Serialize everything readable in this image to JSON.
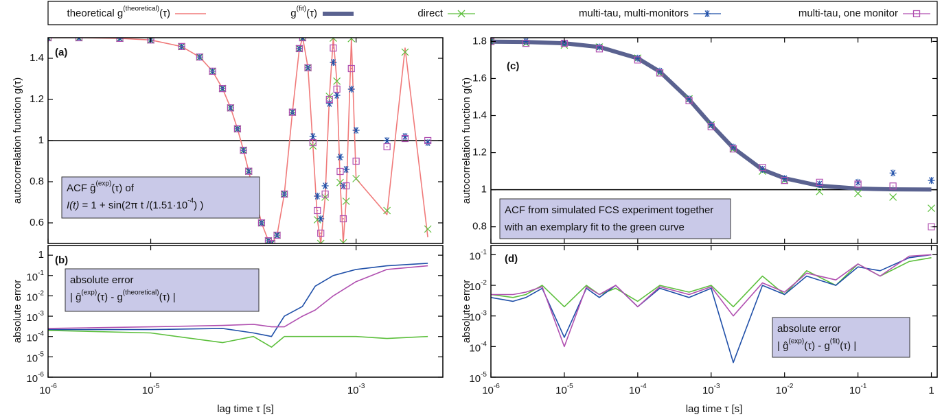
{
  "legend": [
    {
      "name": [
        {
          "text": "theoretical g"
        },
        {
          "sup": "(theoretical)"
        },
        {
          "text": "(τ)"
        }
      ],
      "color": "#f07a7a",
      "marker": "line"
    },
    {
      "name": [
        {
          "text": "g"
        },
        {
          "sup": "(fit)"
        },
        {
          "text": "(τ)"
        }
      ],
      "color": "#5a6290",
      "marker": "thick"
    },
    {
      "name": [
        {
          "text": "direct"
        }
      ],
      "color": "#5cbf3c",
      "marker": "x"
    },
    {
      "name": [
        {
          "text": "multi-tau, multi-monitors"
        }
      ],
      "color": "#1f4fa8",
      "marker": "star"
    },
    {
      "name": [
        {
          "text": "multi-tau, one monitor"
        }
      ],
      "color": "#b04fb0",
      "marker": "square"
    }
  ],
  "chart_data": [
    {
      "type": "line",
      "label": "(a)",
      "ylabel": "autocorrelation function g(τ)",
      "xlog": true,
      "ylog": false,
      "hline": 1,
      "xlim": [
        1e-06,
        0.007
      ],
      "ylim": [
        0.5,
        1.5
      ],
      "xticks": [
        {
          "value": 1e-06,
          "label": "10",
          "sup": "-6"
        },
        {
          "value": 1e-05,
          "label": "10",
          "sup": "-5"
        },
        {
          "value": 0.001,
          "label": "10",
          "sup": "-3"
        }
      ],
      "yticks": [
        0.6,
        0.8,
        1,
        1.2,
        1.4
      ],
      "x": [
        1e-06,
        2e-06,
        5e-06,
        1e-05,
        2e-05,
        3e-05,
        4e-05,
        5e-05,
        6e-05,
        7e-05,
        8e-05,
        9e-05,
        0.0001,
        0.00012,
        0.00014,
        0.000151,
        0.00017,
        0.0002,
        0.00024,
        0.00028,
        0.000302,
        0.00034,
        0.00038,
        0.00042,
        0.000453,
        0.0005,
        0.00055,
        0.0006,
        0.00065,
        0.0007,
        0.00075,
        0.0008,
        0.0009,
        0.001,
        0.002,
        0.003,
        0.005
      ],
      "series": [
        {
          "color": "#f07a7a",
          "marker": "line",
          "values": [
            1.5,
            1.5,
            1.497,
            1.489,
            1.457,
            1.406,
            1.337,
            1.253,
            1.159,
            1.057,
            0.953,
            0.851,
            0.756,
            0.6,
            0.513,
            0.5,
            0.54,
            0.74,
            1.138,
            1.447,
            1.5,
            1.354,
            0.974,
            0.615,
            0.5,
            0.725,
            1.215,
            1.498,
            1.289,
            0.796,
            0.503,
            0.705,
            1.496,
            0.815,
            0.64,
            1.45,
            0.53
          ]
        },
        {
          "color": "#5cbf3c",
          "marker": "x",
          "values": [
            1.5,
            1.5,
            1.497,
            1.489,
            1.457,
            1.406,
            1.337,
            1.253,
            1.159,
            1.057,
            0.953,
            0.851,
            0.756,
            0.6,
            0.513,
            0.5,
            0.54,
            0.74,
            1.138,
            1.447,
            1.5,
            1.354,
            0.974,
            0.615,
            0.5,
            0.725,
            1.215,
            1.498,
            1.289,
            0.796,
            0.503,
            0.705,
            1.496,
            0.815,
            0.66,
            1.43,
            0.57
          ]
        },
        {
          "color": "#1f4fa8",
          "marker": "star",
          "values": [
            1.5,
            1.5,
            1.497,
            1.489,
            1.457,
            1.406,
            1.337,
            1.253,
            1.159,
            1.057,
            0.953,
            0.851,
            0.756,
            0.6,
            0.513,
            0.5,
            0.54,
            0.74,
            1.138,
            1.447,
            1.5,
            1.354,
            1.02,
            0.73,
            0.62,
            0.78,
            1.18,
            1.38,
            1.22,
            0.92,
            0.78,
            0.86,
            1.25,
            1.05,
            1.0,
            1.02,
            0.99
          ]
        },
        {
          "color": "#b04fb0",
          "marker": "square",
          "values": [
            1.5,
            1.5,
            1.497,
            1.489,
            1.457,
            1.406,
            1.337,
            1.253,
            1.159,
            1.057,
            0.953,
            0.851,
            0.756,
            0.6,
            0.513,
            0.5,
            0.54,
            0.74,
            1.138,
            1.447,
            1.5,
            1.354,
            0.99,
            0.66,
            0.55,
            0.74,
            1.2,
            1.45,
            1.25,
            0.85,
            0.62,
            0.78,
            1.35,
            0.9,
            0.97,
            1.01,
            1.0
          ]
        }
      ],
      "annotation": [
        [
          {
            "text": "ACF ĝ"
          },
          {
            "sup": "(exp)"
          },
          {
            "text": "(τ) of"
          }
        ],
        [
          {
            "text": "I(t)",
            "italic": true
          },
          {
            "text": " = 1 + sin(2π t /(1.51·10"
          },
          {
            "sup": "-4"
          },
          {
            "text": ") )"
          }
        ]
      ]
    },
    {
      "type": "line",
      "label": "(b)",
      "ylabel": "absolute error",
      "xlabel": "lag time τ [s]",
      "xlog": true,
      "ylog": true,
      "xlim": [
        1e-06,
        0.007
      ],
      "ylim": [
        1e-06,
        3
      ],
      "xticks": [
        {
          "value": 1e-06,
          "label": "10",
          "sup": "-6"
        },
        {
          "value": 1e-05,
          "label": "10",
          "sup": "-5"
        },
        {
          "value": 0.001,
          "label": "10",
          "sup": "-3"
        }
      ],
      "yticks": [
        {
          "value": 1e-06,
          "label": "10",
          "sup": "-6"
        },
        {
          "value": 1e-05,
          "label": "10",
          "sup": "-5"
        },
        {
          "value": 0.0001,
          "label": "10",
          "sup": "-4"
        },
        {
          "value": 0.001,
          "label": "10",
          "sup": "-3"
        },
        {
          "value": 0.01,
          "label": "10",
          "sup": "-2"
        },
        {
          "value": 0.1,
          "label": "10",
          "sup": "-1"
        },
        1
      ],
      "x": [
        1e-06,
        1e-05,
        5e-05,
        0.0001,
        0.00015,
        0.0002,
        0.0003,
        0.0004,
        0.0006,
        0.001,
        0.002,
        0.005
      ],
      "series": [
        {
          "color": "#1f4fa8",
          "marker": "line",
          "values": [
            0.00022,
            0.00022,
            0.00025,
            0.00015,
            0.0001,
            0.001,
            0.003,
            0.03,
            0.1,
            0.2,
            0.3,
            0.4
          ]
        },
        {
          "color": "#b04fb0",
          "marker": "line",
          "values": [
            0.00025,
            0.0003,
            0.00035,
            0.0004,
            0.0003,
            0.0003,
            0.001,
            0.002,
            0.01,
            0.05,
            0.2,
            0.3
          ]
        },
        {
          "color": "#5cbf3c",
          "marker": "line",
          "values": [
            0.0002,
            0.00015,
            5e-05,
            0.0001,
            3e-05,
            0.0001,
            0.0001,
            0.0001,
            0.0001,
            0.0001,
            8e-05,
            0.0001
          ]
        }
      ],
      "annotation": [
        [
          {
            "text": "absolute error"
          }
        ],
        [
          {
            "text": "| ĝ"
          },
          {
            "sup": "(exp)"
          },
          {
            "text": "(τ) - g"
          },
          {
            "sup": "(theoretical)"
          },
          {
            "text": "(τ) |"
          }
        ]
      ]
    },
    {
      "type": "line",
      "label": "(c)",
      "ylabel": "autocorrelation function g(τ)",
      "xlog": true,
      "ylog": false,
      "hline": 1,
      "xlim": [
        1e-06,
        1.2
      ],
      "ylim": [
        0.71,
        1.82
      ],
      "xticks": [
        {
          "value": 1e-06,
          "label": "10",
          "sup": "-6"
        },
        {
          "value": 1e-05,
          "label": "10",
          "sup": "-5"
        },
        {
          "value": 0.0001,
          "label": "10",
          "sup": "-4"
        },
        {
          "value": 0.001,
          "label": "10",
          "sup": "-3"
        },
        {
          "value": 0.01,
          "label": "10",
          "sup": "-2"
        },
        {
          "value": 0.1,
          "label": "10",
          "sup": "-1"
        },
        1
      ],
      "yticks": [
        0.8,
        1,
        1.2,
        1.4,
        1.6,
        1.8
      ],
      "x": [
        1e-06,
        3e-06,
        1e-05,
        3e-05,
        0.0001,
        0.0002,
        0.0005,
        0.001,
        0.002,
        0.005,
        0.01,
        0.03,
        0.1,
        0.3,
        1
      ],
      "series": [
        {
          "color": "#5a6290",
          "marker": "thick",
          "values": [
            1.799,
            1.797,
            1.79,
            1.77,
            1.709,
            1.637,
            1.487,
            1.351,
            1.225,
            1.108,
            1.062,
            1.021,
            1.006,
            1.002,
            1.001
          ]
        },
        {
          "color": "#5cbf3c",
          "marker": "x",
          "values": [
            1.8,
            1.79,
            1.78,
            1.77,
            1.71,
            1.63,
            1.49,
            1.35,
            1.22,
            1.1,
            1.05,
            0.99,
            0.98,
            0.96,
            0.9
          ]
        },
        {
          "color": "#1f4fa8",
          "marker": "star",
          "values": [
            1.8,
            1.8,
            1.79,
            1.77,
            1.71,
            1.64,
            1.49,
            1.35,
            1.23,
            1.11,
            1.06,
            1.03,
            1.04,
            1.09,
            1.05
          ]
        },
        {
          "color": "#b04fb0",
          "marker": "square",
          "values": [
            1.8,
            1.79,
            1.79,
            1.76,
            1.7,
            1.63,
            1.48,
            1.34,
            1.22,
            1.12,
            1.05,
            1.04,
            1.03,
            1.02,
            0.8
          ]
        }
      ],
      "annotation": [
        [
          {
            "text": "ACF from simulated FCS experiment together"
          }
        ],
        [
          {
            "text": "with an exemplary  fit to the green curve"
          }
        ]
      ]
    },
    {
      "type": "line",
      "label": "(d)",
      "ylabel": "absolute error",
      "xlabel": "lag time τ [s]",
      "xlog": true,
      "ylog": true,
      "xlim": [
        1e-06,
        1.2
      ],
      "ylim": [
        1e-05,
        0.2
      ],
      "xticks": [
        {
          "value": 1e-06,
          "label": "10",
          "sup": "-6"
        },
        {
          "value": 1e-05,
          "label": "10",
          "sup": "-5"
        },
        {
          "value": 0.0001,
          "label": "10",
          "sup": "-4"
        },
        {
          "value": 0.001,
          "label": "10",
          "sup": "-3"
        },
        {
          "value": 0.01,
          "label": "10",
          "sup": "-2"
        },
        {
          "value": 0.1,
          "label": "10",
          "sup": "-1"
        },
        1
      ],
      "yticks": [
        {
          "value": 1e-05,
          "label": "10",
          "sup": "-5"
        },
        {
          "value": 0.0001,
          "label": "10",
          "sup": "-4"
        },
        {
          "value": 0.001,
          "label": "10",
          "sup": "-3"
        },
        {
          "value": 0.01,
          "label": "10",
          "sup": "-2"
        },
        {
          "value": 0.1,
          "label": "10",
          "sup": "-1"
        }
      ],
      "x": [
        1e-06,
        2e-06,
        3e-06,
        5e-06,
        1e-05,
        2e-05,
        3e-05,
        5e-05,
        0.0001,
        0.0002,
        0.0005,
        0.001,
        0.002,
        0.005,
        0.01,
        0.02,
        0.05,
        0.1,
        0.2,
        0.5,
        1
      ],
      "series": [
        {
          "color": "#5cbf3c",
          "marker": "line",
          "values": [
            0.005,
            0.004,
            0.005,
            0.01,
            0.002,
            0.01,
            0.005,
            0.008,
            0.003,
            0.01,
            0.006,
            0.01,
            0.002,
            0.02,
            0.005,
            0.03,
            0.01,
            0.05,
            0.02,
            0.06,
            0.08
          ]
        },
        {
          "color": "#1f4fa8",
          "marker": "line",
          "values": [
            0.004,
            0.003,
            0.004,
            0.008,
            0.0002,
            0.008,
            0.004,
            0.01,
            0.002,
            0.008,
            0.004,
            0.008,
            3e-05,
            0.01,
            0.005,
            0.02,
            0.01,
            0.04,
            0.03,
            0.08,
            0.1
          ]
        },
        {
          "color": "#b04fb0",
          "marker": "line",
          "values": [
            0.005,
            0.005,
            0.006,
            0.009,
            0.0001,
            0.009,
            0.005,
            0.01,
            0.002,
            0.009,
            0.005,
            0.009,
            0.001,
            0.012,
            0.006,
            0.025,
            0.015,
            0.05,
            0.02,
            0.09,
            0.1
          ]
        }
      ],
      "annotation": [
        [
          {
            "text": "absolute error"
          }
        ],
        [
          {
            "text": "| ĝ"
          },
          {
            "sup": "(exp)"
          },
          {
            "text": "(τ) - g"
          },
          {
            "sup": "(fit)"
          },
          {
            "text": "(τ) |"
          }
        ]
      ]
    }
  ]
}
